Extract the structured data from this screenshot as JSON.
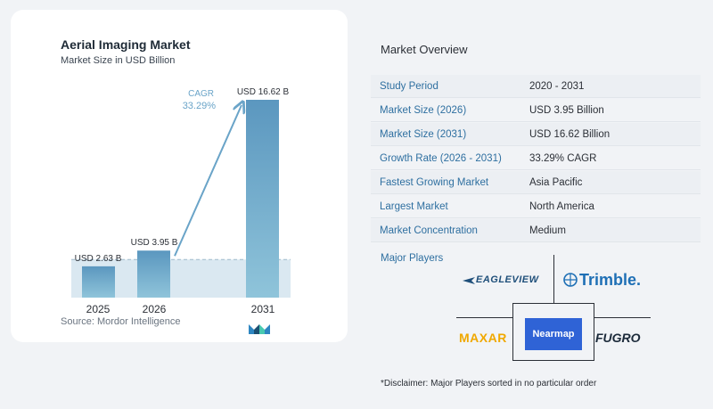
{
  "chart_data": {
    "type": "bar",
    "title": "Aerial Imaging Market",
    "subtitle": "Market Size in USD Billion",
    "categories": [
      "2025",
      "2026",
      "2031"
    ],
    "values": [
      2.63,
      3.95,
      16.62
    ],
    "value_labels": [
      "USD 2.63 B",
      "USD 3.95 B",
      "USD 16.62 B"
    ],
    "cagr_label": "CAGR",
    "cagr_value": "33.29%",
    "ylim": [
      0,
      16.62
    ],
    "grid": false,
    "colors": {
      "bar_light": "#8fc4da",
      "bar_dark": "#5b97bf",
      "band": "#dae8f1",
      "arrow": "#6aa4c8",
      "cagr": "#6aa4c8"
    }
  },
  "source": "Source:  Mordor Intelligence",
  "overview": {
    "title": "Market Overview",
    "rows": [
      {
        "label": "Study Period",
        "value": "2020 - 2031"
      },
      {
        "label": "Market Size (2026)",
        "value": "USD 3.95 Billion"
      },
      {
        "label": "Market Size (2031)",
        "value": "USD 16.62 Billion"
      },
      {
        "label": "Growth Rate (2026 - 2031)",
        "value": "33.29% CAGR"
      },
      {
        "label": "Fastest Growing Market",
        "value": "Asia Pacific"
      },
      {
        "label": "Largest Market",
        "value": "North America"
      },
      {
        "label": "Market Concentration",
        "value": "Medium"
      }
    ]
  },
  "players": {
    "title": "Major Players",
    "names": [
      "EAGLEVIEW",
      "Trimble.",
      "MAXAR",
      "Nearmap",
      "FUGRO"
    ]
  },
  "disclaimer": "*Disclaimer: Major Players sorted in no particular order"
}
